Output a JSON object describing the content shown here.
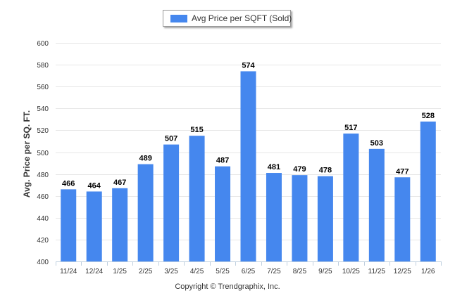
{
  "chart_data": {
    "type": "bar",
    "legend": {
      "label": "Avg Price per SQFT (Sold)",
      "position": "top-center"
    },
    "categories": [
      "11/24",
      "12/24",
      "1/25",
      "2/25",
      "3/25",
      "4/25",
      "5/25",
      "6/25",
      "7/25",
      "8/25",
      "9/25",
      "10/25",
      "11/25",
      "12/25",
      "1/26"
    ],
    "series": [
      {
        "name": "Avg Price per SQFT (Sold)",
        "values": [
          466,
          464,
          467,
          489,
          507,
          515,
          487,
          574,
          481,
          479,
          478,
          517,
          503,
          477,
          528
        ]
      }
    ],
    "ylabel": "Avg. Price per SQ. FT.",
    "xlabel": "",
    "ylim": [
      400,
      600
    ],
    "yticks": [
      400,
      420,
      440,
      460,
      480,
      500,
      520,
      540,
      560,
      580,
      600
    ],
    "grid": true,
    "bar_color": "#4587ee"
  },
  "footer": {
    "copyright": "Copyright © Trendgraphix, Inc."
  }
}
